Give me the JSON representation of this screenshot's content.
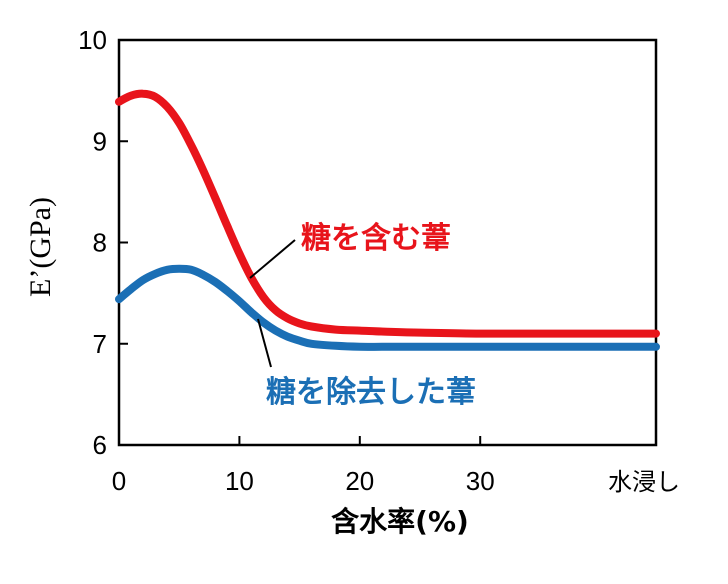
{
  "chart_data": {
    "type": "line",
    "xlabel": "含水率(%)",
    "ylabel": "E’(GPa)",
    "xlim": [
      0,
      44.6
    ],
    "ylim": [
      6,
      10
    ],
    "x_ticks": [
      {
        "value": 0,
        "label": "0"
      },
      {
        "value": 10,
        "label": "10"
      },
      {
        "value": 20,
        "label": "20"
      },
      {
        "value": 30,
        "label": "30"
      },
      {
        "value": 44.6,
        "label": "水浸し"
      }
    ],
    "y_ticks": [
      {
        "value": 6,
        "label": "6"
      },
      {
        "value": 7,
        "label": "7"
      },
      {
        "value": 8,
        "label": "8"
      },
      {
        "value": 9,
        "label": "9"
      },
      {
        "value": 10,
        "label": "10"
      }
    ],
    "series": [
      {
        "name": "糖を含む葦",
        "color": "#e8141b",
        "x": [
          0,
          1,
          2,
          3,
          4,
          5,
          6,
          7,
          8,
          9,
          10,
          11,
          12,
          13,
          14,
          15,
          16,
          18,
          20,
          22,
          25,
          30,
          35,
          40,
          44.6
        ],
        "y": [
          9.39,
          9.45,
          9.47,
          9.44,
          9.34,
          9.18,
          8.96,
          8.71,
          8.44,
          8.16,
          7.89,
          7.65,
          7.46,
          7.33,
          7.25,
          7.2,
          7.17,
          7.14,
          7.13,
          7.12,
          7.11,
          7.1,
          7.1,
          7.1,
          7.1
        ]
      },
      {
        "name": "糖を除去した葦",
        "color": "#1b6fb5",
        "x": [
          0,
          1,
          2,
          3,
          4,
          5,
          6,
          7,
          8,
          9,
          10,
          11,
          12,
          13,
          14,
          15,
          16,
          18,
          20,
          22,
          25,
          30,
          35,
          40,
          44.6
        ],
        "y": [
          7.44,
          7.54,
          7.63,
          7.69,
          7.73,
          7.74,
          7.73,
          7.68,
          7.61,
          7.52,
          7.42,
          7.31,
          7.21,
          7.13,
          7.07,
          7.03,
          7.0,
          6.98,
          6.97,
          6.97,
          6.97,
          6.97,
          6.97,
          6.97,
          6.97
        ]
      }
    ],
    "annotations": [
      {
        "text": "糖を含む葦",
        "series": 0,
        "color": "#e8141b"
      },
      {
        "text": "糖を除去した葦",
        "series": 1,
        "color": "#1b6fb5"
      }
    ],
    "grid": false,
    "legend": "none"
  }
}
